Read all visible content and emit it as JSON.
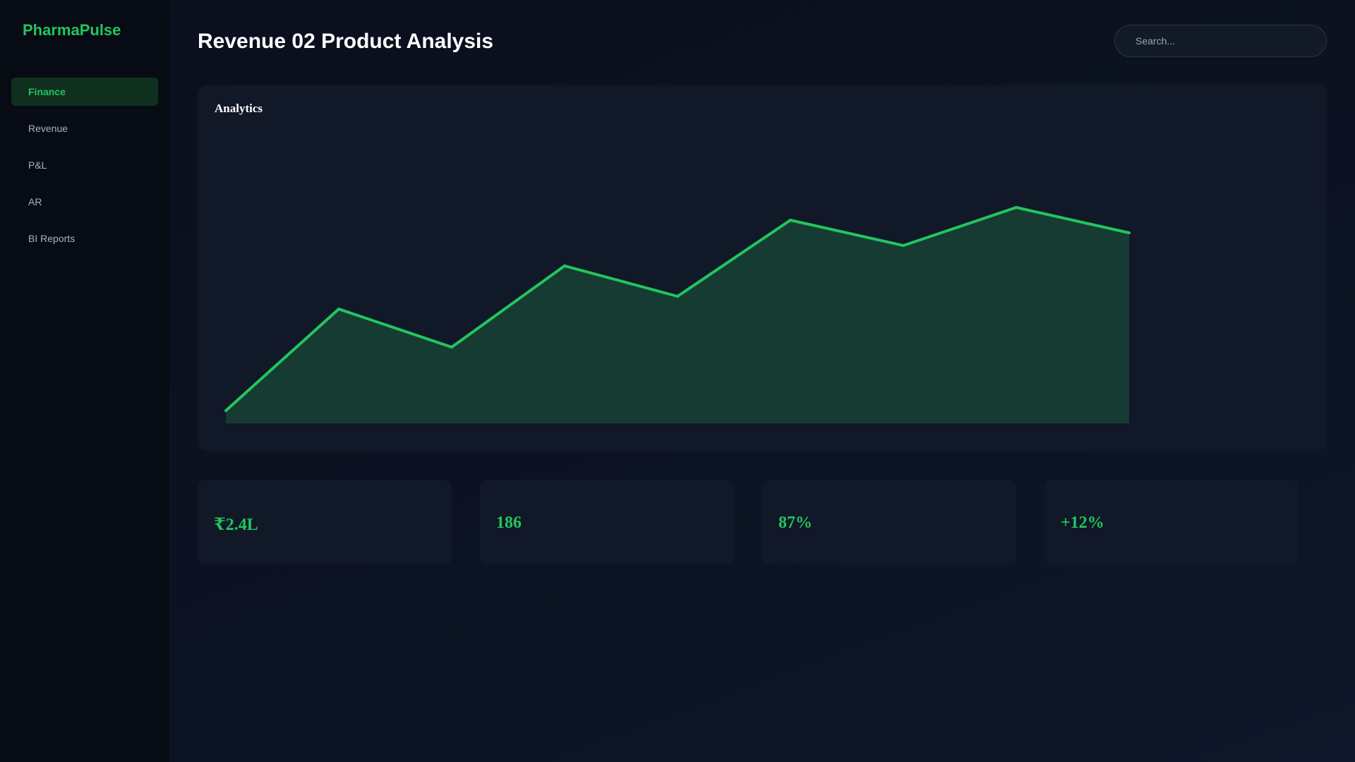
{
  "sidebar": {
    "brand": "PharmaPulse",
    "items": [
      {
        "label": "Finance",
        "active": true
      },
      {
        "label": "Revenue",
        "active": false
      },
      {
        "label": "P&L",
        "active": false
      },
      {
        "label": "AR",
        "active": false
      },
      {
        "label": "BI Reports",
        "active": false
      }
    ]
  },
  "header": {
    "title": "Revenue 02 Product Analysis",
    "search_placeholder": "Search..."
  },
  "chart_card": {
    "title": "Analytics"
  },
  "chart_data": {
    "type": "area",
    "title": "Analytics",
    "x": [
      1,
      2,
      3,
      4,
      5,
      6,
      7,
      8,
      9
    ],
    "values": [
      5,
      45,
      30,
      62,
      50,
      80,
      70,
      85,
      75
    ],
    "ylim": [
      0,
      100
    ],
    "grid": false,
    "legend": "none"
  },
  "stats": [
    {
      "value": "₹2.4L"
    },
    {
      "value": "186"
    },
    {
      "value": "87%"
    },
    {
      "value": "+12%"
    }
  ],
  "colors": {
    "accent": "#22c55e",
    "area_fill": "#163b33",
    "background": "#0b1120",
    "sidebar": "#070b14",
    "card": "#111827"
  }
}
